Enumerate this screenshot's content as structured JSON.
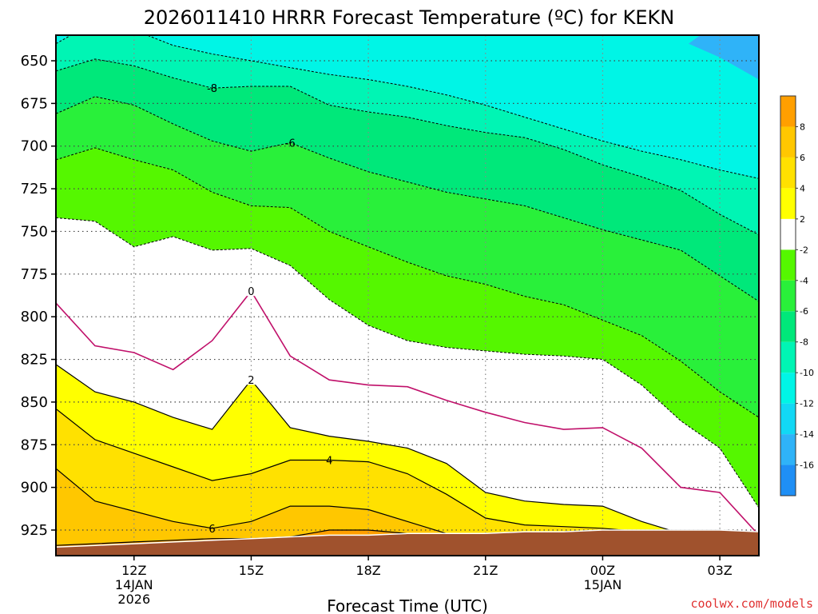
{
  "chart_data": {
    "type": "contour",
    "title": "2026011410 HRRR Forecast Temperature (ºC) for KEKN",
    "xlabel": "Forecast Time (UTC)",
    "ylabel": "",
    "y_axis": {
      "reversed": true,
      "ylim": [
        940,
        635
      ],
      "ticks": [
        650,
        675,
        700,
        725,
        750,
        775,
        800,
        825,
        850,
        875,
        900,
        925
      ],
      "tick_labels": [
        "650",
        "675",
        "700",
        "725",
        "750",
        "775",
        "800",
        "825",
        "850",
        "875",
        "900",
        "925"
      ]
    },
    "x_axis": {
      "xlim_hours": [
        10,
        28.0
      ],
      "ticks": [
        {
          "hour": 12,
          "label": "12Z",
          "sub1": "14JAN",
          "sub2": "2026"
        },
        {
          "hour": 15,
          "label": "15Z",
          "sub1": "",
          "sub2": ""
        },
        {
          "hour": 18,
          "label": "18Z",
          "sub1": "",
          "sub2": ""
        },
        {
          "hour": 21,
          "label": "21Z",
          "sub1": "",
          "sub2": ""
        },
        {
          "hour": 24,
          "label": "00Z",
          "sub1": "15JAN",
          "sub2": ""
        },
        {
          "hour": 27,
          "label": "03Z",
          "sub1": "",
          "sub2": ""
        }
      ]
    },
    "grid": true,
    "colorbar": {
      "placement": "right",
      "levels": [
        -18,
        -16,
        -14,
        -12,
        -10,
        -8,
        -6,
        -4,
        -2,
        2,
        4,
        6,
        8,
        10
      ],
      "labels": [
        "-16",
        "-14",
        "-12",
        "-10",
        "-8",
        "-6",
        "-4",
        "-2",
        "2",
        "4",
        "6",
        "8"
      ],
      "colors": [
        "#1f8ff5",
        "#2fb3f8",
        "#12d8f5",
        "#00f5e6",
        "#00f5b4",
        "#00e87a",
        "#29f03a",
        "#55f700",
        "#ffffff",
        "#ffff00",
        "#ffe100",
        "#ffc700",
        "#ff9f00"
      ]
    },
    "x_hours": [
      10.0,
      11.0,
      12.0,
      13.0,
      14.0,
      15.0,
      16.0,
      17.0,
      18.0,
      19.0,
      20.0,
      21.0,
      22.0,
      23.0,
      24.0,
      25.0,
      26.0,
      27.0,
      28.0
    ],
    "surface_pressure": [
      935,
      934,
      933,
      932,
      931,
      930,
      929,
      928,
      928,
      927,
      927,
      927,
      926,
      926,
      925,
      925,
      925,
      925,
      926
    ],
    "isotherms": [
      {
        "value": -10,
        "style": "dashed",
        "pressure": [
          640,
          627,
          632,
          641,
          646,
          650,
          654,
          658,
          661,
          665,
          670,
          676,
          683,
          690,
          697,
          703,
          708,
          714,
          719
        ]
      },
      {
        "value": -8,
        "style": "dashed",
        "label_at_hour": 14,
        "pressure": [
          656,
          649,
          653,
          660,
          666,
          665,
          665,
          676,
          680,
          683,
          688,
          692,
          695,
          702,
          711,
          718,
          726,
          740,
          752
        ]
      },
      {
        "value": -6,
        "style": "dashed",
        "label_at_hour": 16,
        "pressure": [
          681,
          671,
          676,
          687,
          697,
          703,
          698,
          707,
          715,
          721,
          727,
          731,
          735,
          742,
          749,
          755,
          761,
          776,
          791
        ]
      },
      {
        "value": -4,
        "style": "dashed",
        "pressure": [
          708,
          701,
          708,
          714,
          727,
          735,
          736,
          750,
          759,
          768,
          776,
          781,
          788,
          793,
          802,
          811,
          826,
          844,
          859
        ]
      },
      {
        "value": -2,
        "style": "dashed",
        "pressure": [
          742,
          744,
          759,
          753,
          761,
          760,
          770,
          790,
          805,
          814,
          818,
          820,
          822,
          823,
          825,
          840,
          861,
          877,
          912
        ]
      },
      {
        "value": 0,
        "style": "solid-magenta",
        "label_at_hour": 15,
        "pressure": [
          792,
          817,
          821,
          831,
          814,
          785,
          823,
          837,
          840,
          841,
          849,
          856,
          862,
          866,
          865,
          877,
          900,
          903,
          928
        ]
      },
      {
        "value": 2,
        "style": "solid",
        "label_at_hour": 15,
        "pressure": [
          828,
          844,
          850,
          859,
          866,
          837,
          865,
          870,
          873,
          877,
          886,
          903,
          908,
          910,
          911,
          920,
          927,
          928,
          928
        ]
      },
      {
        "value": 4,
        "style": "solid",
        "label_at_hour": 17,
        "pressure": [
          854,
          872,
          880,
          888,
          896,
          892,
          884,
          884,
          885,
          892,
          904,
          918,
          922,
          923,
          924,
          926,
          926,
          926,
          926
        ]
      },
      {
        "value": 6,
        "style": "solid",
        "label_at_hour": 14,
        "pressure": [
          889,
          908,
          914,
          920,
          924,
          920,
          911,
          911,
          913,
          920,
          927,
          927,
          927,
          926,
          925,
          926,
          926,
          926,
          926
        ]
      },
      {
        "value": 8,
        "style": "solid",
        "pressure": [
          934,
          933,
          932,
          931,
          930,
          930,
          929,
          925,
          925,
          927,
          927,
          927,
          926,
          926,
          925,
          925,
          925,
          925,
          926
        ]
      }
    ]
  },
  "credit": "coolwx.com/models",
  "colors": {
    "ground": "#a0522d",
    "zero_isotherm": "#c0106a",
    "frame": "#000000"
  }
}
